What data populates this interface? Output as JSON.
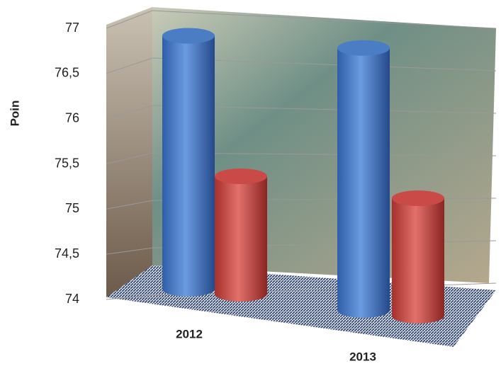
{
  "chart_data": {
    "type": "bar3d",
    "y_label": "Poin",
    "categories": [
      "2012",
      "2013"
    ],
    "series": [
      {
        "color": "#4a7dc4",
        "values": [
          76.8,
          76.9
        ]
      },
      {
        "color": "#c94a46",
        "values": [
          75.3,
          75.3
        ]
      }
    ],
    "ylim": [
      74,
      77
    ],
    "yticks": [
      74,
      {
        "value": 74.5,
        "label": "74,5"
      },
      75,
      {
        "value": 75.5,
        "label": "75,5"
      },
      76,
      {
        "value": 76.5,
        "label": "76,5"
      },
      77
    ],
    "grid": true
  }
}
